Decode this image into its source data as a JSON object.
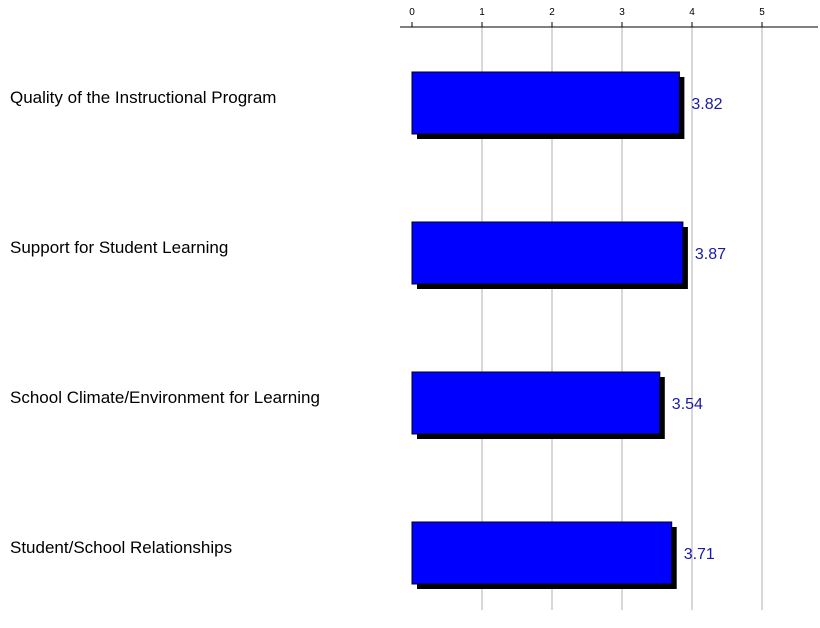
{
  "chart_data": {
    "type": "bar",
    "orientation": "horizontal",
    "categories": [
      "Quality of the Instructional Program",
      "Support for Student Learning",
      "School Climate/Environment for Learning",
      "Student/School Relationships"
    ],
    "values": [
      3.82,
      3.87,
      3.54,
      3.71
    ],
    "value_labels": [
      "3.82",
      "3.87",
      "3.54",
      "3.71"
    ],
    "x_ticks": [
      "0",
      "1",
      "2",
      "3",
      "4",
      "5"
    ],
    "xlim": [
      0,
      5
    ],
    "x_axis_position": "top",
    "grid": true,
    "legend": "none",
    "title": "",
    "xlabel": "",
    "ylabel": "",
    "colors": {
      "bar": "#0000ff",
      "bar_shadow": "#000000",
      "data_label": "#1a1aa6",
      "gridline": "#b0b0b0",
      "axis": "#000000"
    }
  }
}
